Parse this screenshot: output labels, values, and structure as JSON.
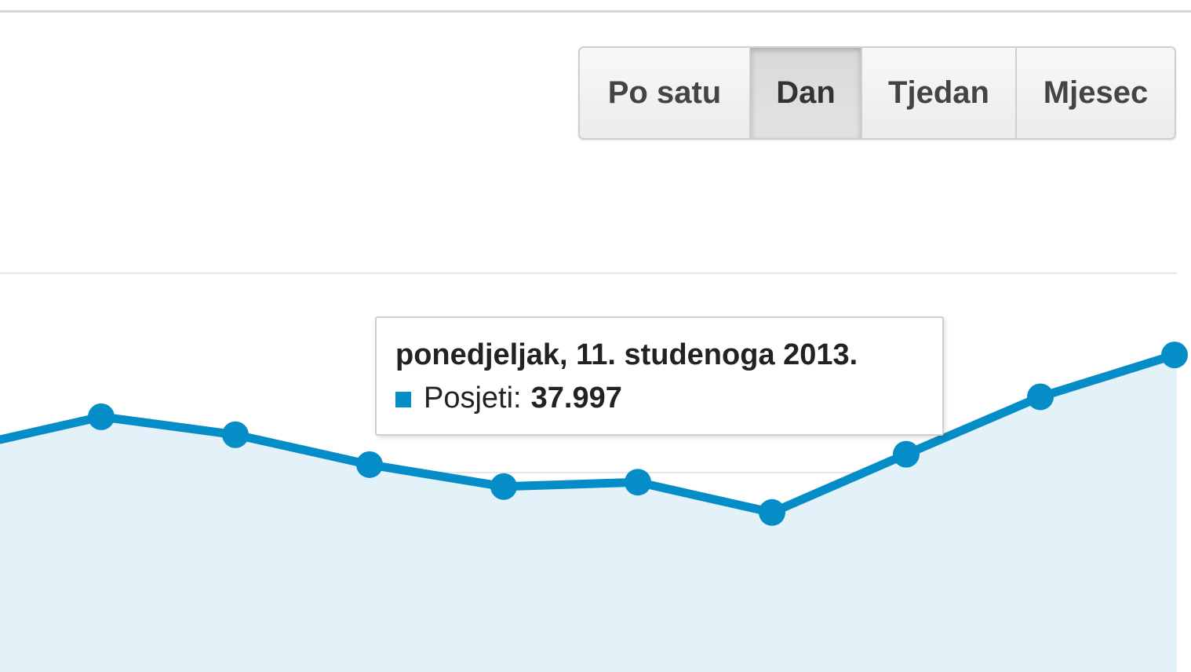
{
  "granularity_toolbar": {
    "options": [
      {
        "label": "Po satu",
        "active": false
      },
      {
        "label": "Dan",
        "active": true
      },
      {
        "label": "Tjedan",
        "active": false
      },
      {
        "label": "Mjesec",
        "active": false
      }
    ]
  },
  "tooltip": {
    "date": "ponedjeljak, 11. studenoga 2013.",
    "series_label": "Posjeti:",
    "value": "37.997",
    "swatch_color": "#058dc7"
  },
  "chart_data": {
    "type": "area",
    "series": [
      {
        "name": "Posjeti",
        "color": "#058dc7",
        "fill": "#e3f1f9",
        "values": [
          38650,
          39400,
          38950,
          38200,
          37650,
          37760,
          37000,
          38460,
          39900,
          40950
        ]
      }
    ],
    "ylim": [
      33000,
      43000
    ],
    "grid": true
  }
}
